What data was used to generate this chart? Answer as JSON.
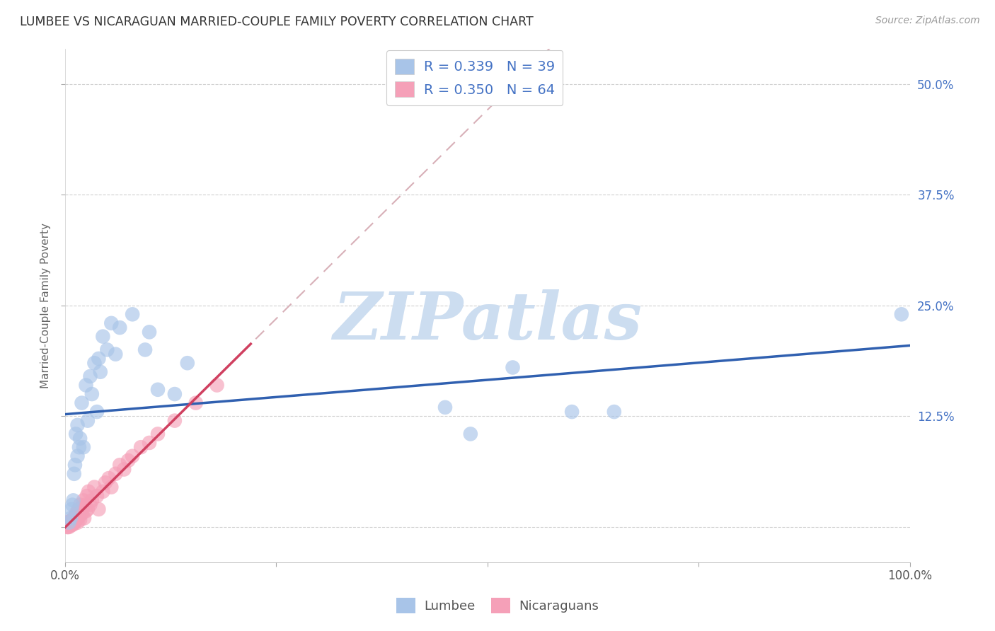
{
  "title": "LUMBEE VS NICARAGUAN MARRIED-COUPLE FAMILY POVERTY CORRELATION CHART",
  "source": "Source: ZipAtlas.com",
  "ylabel": "Married-Couple Family Poverty",
  "xlim": [
    0.0,
    1.0
  ],
  "ylim": [
    -0.04,
    0.54
  ],
  "xticks": [
    0.0,
    0.25,
    0.5,
    0.75,
    1.0
  ],
  "xticklabels": [
    "0.0%",
    "",
    "",
    "",
    "100.0%"
  ],
  "yticks": [
    0.0,
    0.125,
    0.25,
    0.375,
    0.5
  ],
  "yticklabels": [
    "",
    "12.5%",
    "25.0%",
    "37.5%",
    "50.0%"
  ],
  "lumbee_R": 0.339,
  "lumbee_N": 39,
  "nicaraguan_R": 0.35,
  "nicaraguan_N": 64,
  "lumbee_color": "#a8c4e8",
  "nicaraguan_color": "#f5a0b8",
  "lumbee_line_color": "#3060b0",
  "nicaraguan_line_color": "#d04060",
  "dashed_line_color": "#d8b0b8",
  "watermark": "ZIPatlas",
  "watermark_color": "#ccddf0",
  "lumbee_x": [
    0.005,
    0.007,
    0.008,
    0.009,
    0.01,
    0.011,
    0.012,
    0.013,
    0.015,
    0.015,
    0.017,
    0.018,
    0.02,
    0.022,
    0.025,
    0.027,
    0.03,
    0.032,
    0.035,
    0.038,
    0.04,
    0.042,
    0.045,
    0.05,
    0.055,
    0.06,
    0.065,
    0.08,
    0.095,
    0.1,
    0.11,
    0.13,
    0.145,
    0.45,
    0.48,
    0.53,
    0.6,
    0.65,
    0.99
  ],
  "lumbee_y": [
    0.005,
    0.01,
    0.02,
    0.025,
    0.03,
    0.06,
    0.07,
    0.105,
    0.08,
    0.115,
    0.09,
    0.1,
    0.14,
    0.09,
    0.16,
    0.12,
    0.17,
    0.15,
    0.185,
    0.13,
    0.19,
    0.175,
    0.215,
    0.2,
    0.23,
    0.195,
    0.225,
    0.24,
    0.2,
    0.22,
    0.155,
    0.15,
    0.185,
    0.135,
    0.105,
    0.18,
    0.13,
    0.13,
    0.24
  ],
  "nicaraguan_x": [
    0.003,
    0.003,
    0.003,
    0.004,
    0.004,
    0.004,
    0.005,
    0.005,
    0.005,
    0.005,
    0.006,
    0.006,
    0.007,
    0.007,
    0.008,
    0.008,
    0.009,
    0.009,
    0.01,
    0.01,
    0.011,
    0.011,
    0.012,
    0.012,
    0.013,
    0.013,
    0.014,
    0.015,
    0.015,
    0.016,
    0.017,
    0.017,
    0.018,
    0.018,
    0.019,
    0.02,
    0.021,
    0.022,
    0.023,
    0.024,
    0.025,
    0.026,
    0.027,
    0.028,
    0.03,
    0.032,
    0.035,
    0.038,
    0.04,
    0.045,
    0.048,
    0.052,
    0.055,
    0.06,
    0.065,
    0.07,
    0.075,
    0.08,
    0.09,
    0.1,
    0.11,
    0.13,
    0.155,
    0.18
  ],
  "nicaraguan_y": [
    0.0,
    0.0,
    0.005,
    0.002,
    0.003,
    0.005,
    0.0,
    0.002,
    0.004,
    0.006,
    0.002,
    0.005,
    0.003,
    0.007,
    0.002,
    0.006,
    0.004,
    0.008,
    0.003,
    0.007,
    0.005,
    0.01,
    0.006,
    0.012,
    0.008,
    0.015,
    0.01,
    0.005,
    0.015,
    0.02,
    0.012,
    0.018,
    0.025,
    0.008,
    0.02,
    0.015,
    0.022,
    0.03,
    0.01,
    0.025,
    0.018,
    0.035,
    0.02,
    0.04,
    0.025,
    0.03,
    0.045,
    0.035,
    0.02,
    0.04,
    0.05,
    0.055,
    0.045,
    0.06,
    0.07,
    0.065,
    0.075,
    0.08,
    0.09,
    0.095,
    0.105,
    0.12,
    0.14,
    0.16
  ]
}
